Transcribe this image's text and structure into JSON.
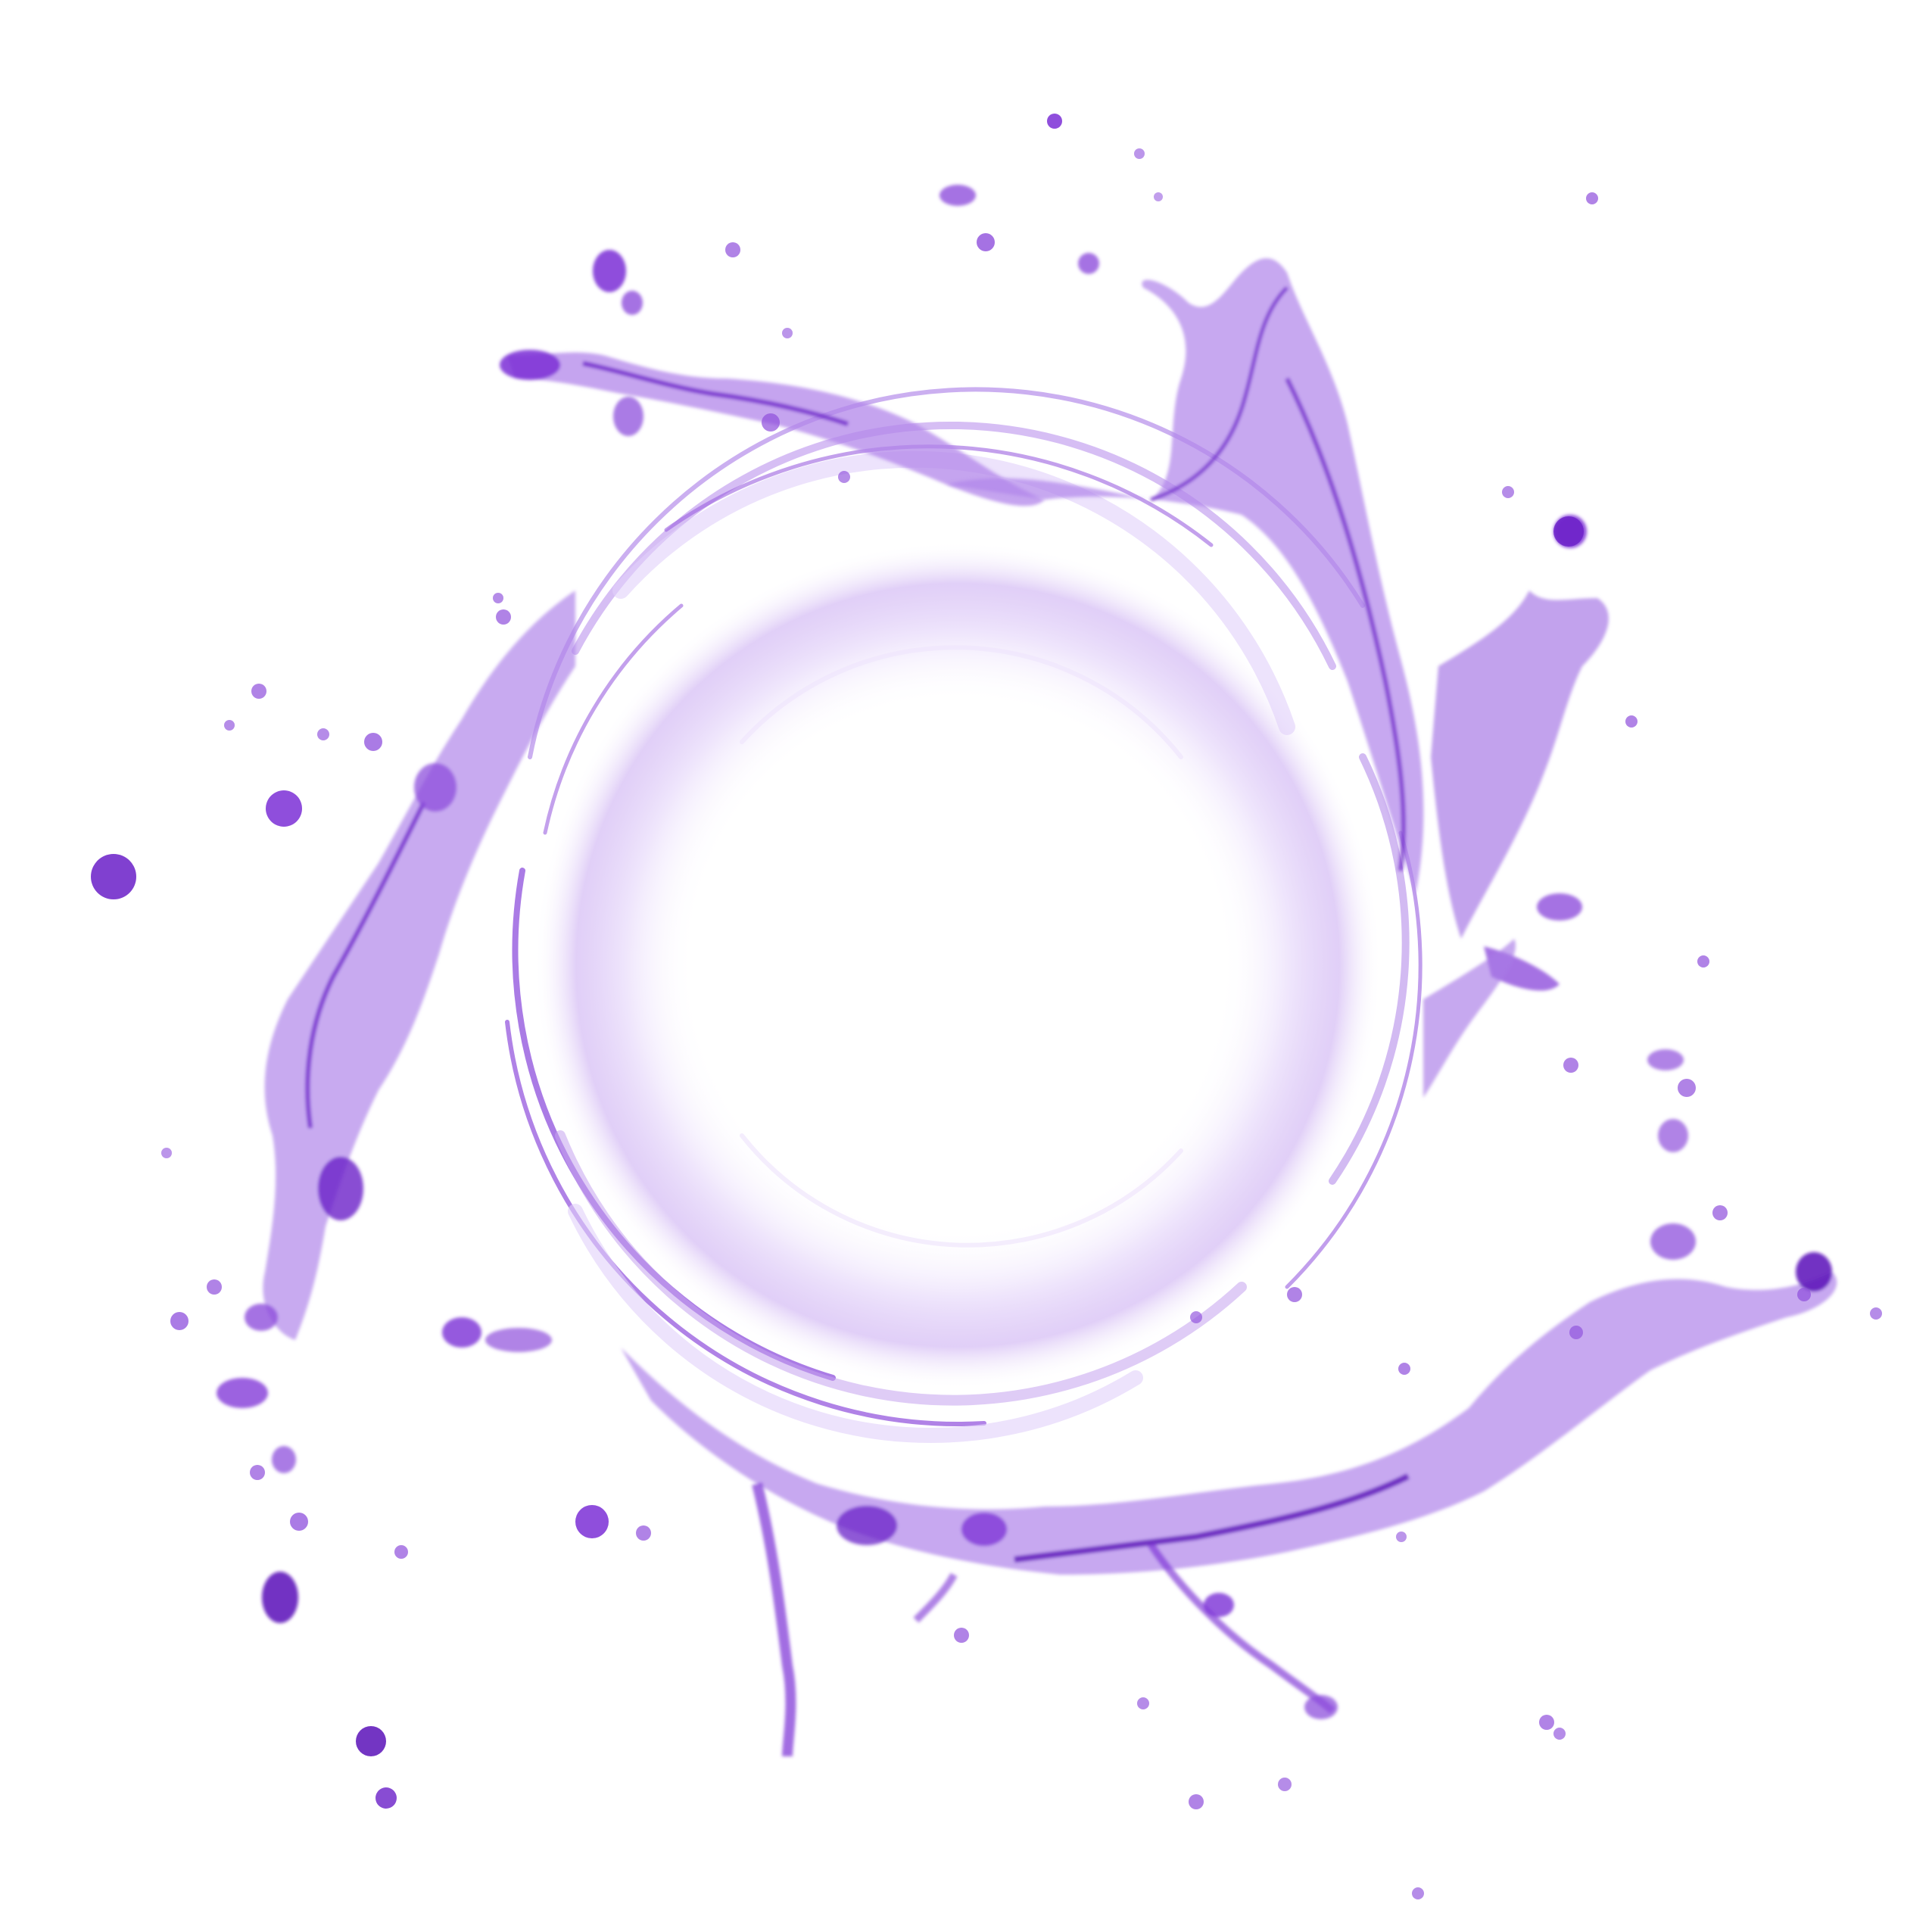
{
  "scene": {
    "background": "#ffffff",
    "subject": "purple-water-splash-ring",
    "colors": {
      "deep": "#5a12b8",
      "mid": "#7b2fd6",
      "light": "#a87ae6",
      "pale": "#e6d9fa"
    }
  }
}
